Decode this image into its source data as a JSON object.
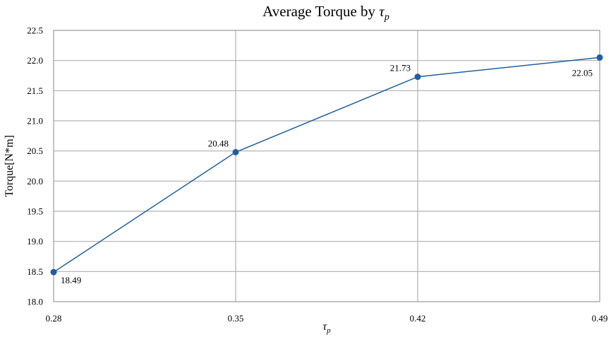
{
  "chart_data": {
    "type": "line",
    "title": {
      "text": "Average Torque by ",
      "symbol": "τ",
      "subscript": "p"
    },
    "xlabel": {
      "symbol": "τ",
      "subscript": "p"
    },
    "ylabel": "Torque[N*m]",
    "x": [
      0.28,
      0.35,
      0.42,
      0.49
    ],
    "x_tick_labels": [
      "0.28",
      "0.35",
      "0.42",
      "0.49"
    ],
    "series": [
      {
        "values": [
          18.49,
          20.48,
          21.73,
          22.05
        ],
        "data_labels": [
          "18.49",
          "20.48",
          "21.73",
          "22.05"
        ],
        "color": "#1f5fa0"
      }
    ],
    "ylim": [
      18.0,
      22.5
    ],
    "y_ticks": [
      18.0,
      18.5,
      19.0,
      19.5,
      20.0,
      20.5,
      21.0,
      21.5,
      22.0,
      22.5
    ],
    "y_tick_labels": [
      "18.0",
      "18.5",
      "19.0",
      "19.5",
      "20.0",
      "20.5",
      "21.0",
      "21.5",
      "22.0",
      "22.5"
    ],
    "xlim": [
      0.28,
      0.49
    ],
    "grid": true,
    "grid_color": "#b0b0b0",
    "frame_color": "#999999"
  }
}
